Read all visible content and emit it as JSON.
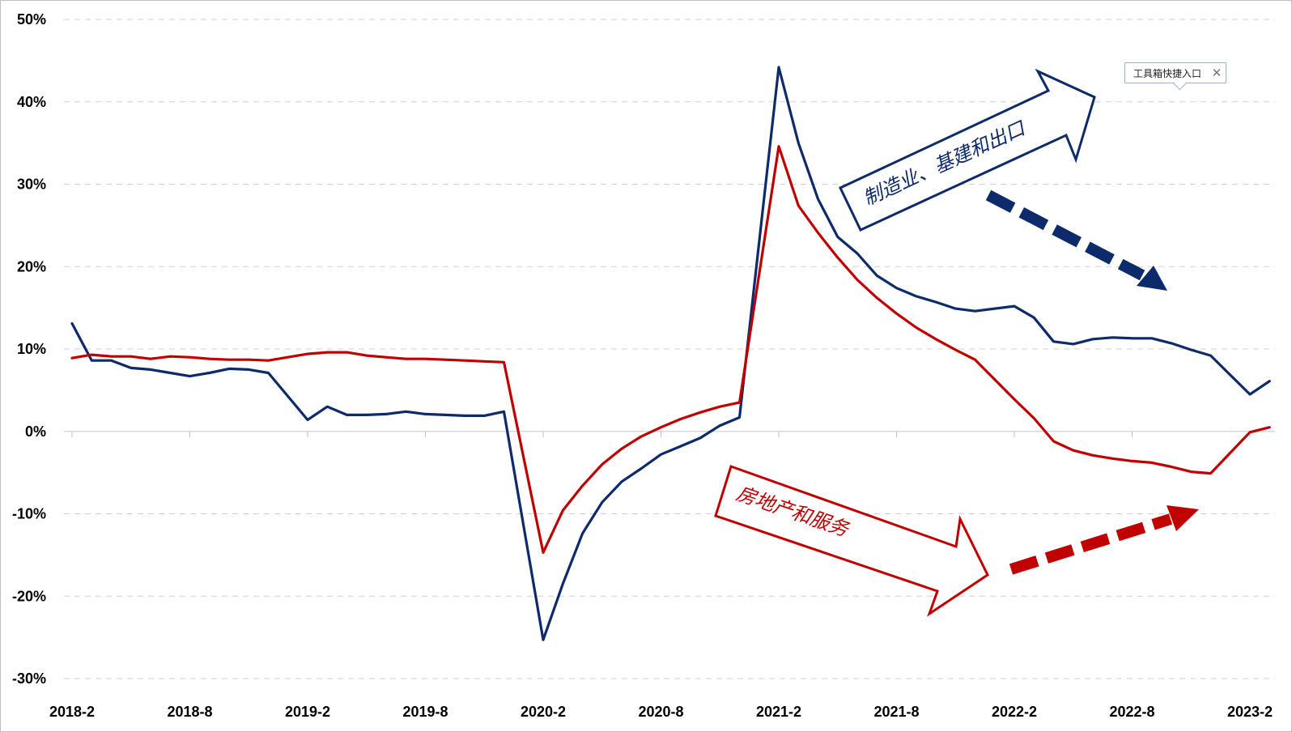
{
  "chart_data": {
    "type": "line",
    "ylim": [
      -30,
      50
    ],
    "yticks": [
      "50%",
      "40%",
      "30%",
      "20%",
      "10%",
      "0%",
      "-10%",
      "-20%",
      "-30%"
    ],
    "xticks": [
      "2018-2",
      "2018-8",
      "2019-2",
      "2019-8",
      "2020-2",
      "2020-8",
      "2021-2",
      "2021-8",
      "2022-2",
      "2022-8",
      "2023-2"
    ],
    "grid": true,
    "x": [
      "2018-2",
      "2018-3",
      "2018-4",
      "2018-5",
      "2018-6",
      "2018-7",
      "2018-8",
      "2018-9",
      "2018-10",
      "2018-11",
      "2018-12",
      "2019-1",
      "2019-2",
      "2019-3",
      "2019-4",
      "2019-5",
      "2019-6",
      "2019-7",
      "2019-8",
      "2019-9",
      "2019-10",
      "2019-11",
      "2019-12",
      "2020-1",
      "2020-2",
      "2020-3",
      "2020-4",
      "2020-5",
      "2020-6",
      "2020-7",
      "2020-8",
      "2020-9",
      "2020-10",
      "2020-11",
      "2020-12",
      "2021-1",
      "2021-2",
      "2021-3",
      "2021-4",
      "2021-5",
      "2021-6",
      "2021-7",
      "2021-8",
      "2021-9",
      "2021-10",
      "2021-11",
      "2021-12",
      "2022-1",
      "2022-2",
      "2022-3",
      "2022-4",
      "2022-5",
      "2022-6",
      "2022-7",
      "2022-8",
      "2022-9",
      "2022-10",
      "2022-11",
      "2022-12",
      "2023-1",
      "2023-2",
      "2023-3"
    ],
    "series": [
      {
        "color": "#0d2a6b",
        "values": [
          13.1,
          8.6,
          8.6,
          7.7,
          7.5,
          7.1,
          6.7,
          7.1,
          7.6,
          7.5,
          7.1,
          null,
          1.4,
          3.0,
          2.0,
          2.0,
          2.1,
          2.4,
          2.1,
          2.0,
          1.9,
          1.9,
          2.4,
          null,
          -25.3,
          -18.5,
          -12.4,
          -8.6,
          -6.1,
          -4.5,
          -2.8,
          -1.8,
          -0.8,
          0.7,
          1.7,
          null,
          44.2,
          35.0,
          28.2,
          23.6,
          21.6,
          18.9,
          17.4,
          16.4,
          15.7,
          14.9,
          14.6,
          null,
          15.2,
          13.8,
          10.9,
          10.6,
          11.2,
          11.4,
          11.3,
          11.3,
          10.7,
          9.9,
          9.2,
          null,
          4.5,
          6.1
        ]
      },
      {
        "color": "#c00000",
        "values": [
          8.9,
          9.3,
          9.1,
          9.1,
          8.8,
          9.1,
          9.0,
          8.8,
          8.7,
          8.7,
          8.6,
          null,
          9.4,
          9.6,
          9.6,
          9.2,
          9.0,
          8.8,
          8.8,
          8.7,
          8.6,
          8.5,
          8.4,
          null,
          -14.7,
          -9.6,
          -6.6,
          -4.0,
          -2.1,
          -0.6,
          0.5,
          1.5,
          2.3,
          3.0,
          3.5,
          null,
          34.6,
          27.4,
          24.1,
          21.1,
          18.4,
          16.2,
          14.3,
          12.6,
          11.2,
          9.9,
          8.7,
          null,
          3.9,
          1.6,
          -1.2,
          -2.3,
          -2.9,
          -3.3,
          -3.6,
          -3.8,
          -4.3,
          -4.9,
          -5.1,
          null,
          -0.1,
          0.5
        ]
      }
    ],
    "annotations": {
      "up_label": "制造业、基建和出口",
      "down_label": "房地产和服务",
      "up_color": "#0d2a6b",
      "down_color": "#c00000"
    }
  },
  "toolbox": {
    "label": "工具箱快捷入口",
    "close_glyph": "✕"
  }
}
